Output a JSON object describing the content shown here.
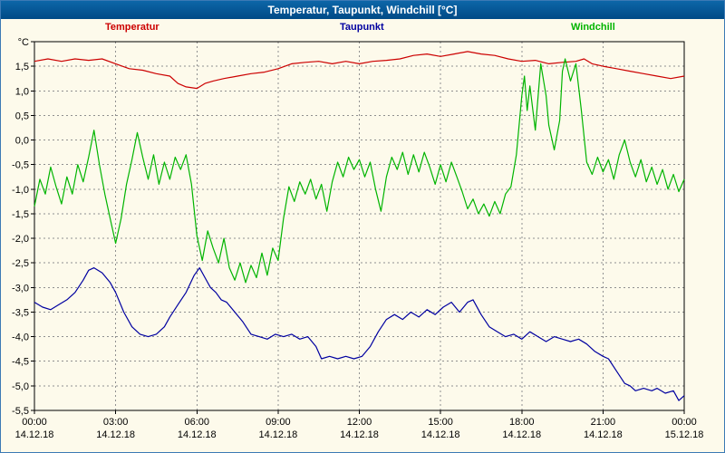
{
  "window": {
    "title": "Temperatur, Taupunkt, Windchill [°C]"
  },
  "chart_data": {
    "type": "line",
    "title": "Temperatur, Taupunkt, Windchill [°C]",
    "xlabel": "",
    "ylabel": "°C",
    "grid": true,
    "legend_position": "top",
    "xlim": [
      0,
      24
    ],
    "y_axis": {
      "min": -5.5,
      "max": 2.0,
      "step": 0.5,
      "ticks": [
        {
          "v": 2.0,
          "label": "°C"
        },
        {
          "v": 1.5,
          "label": "1,5"
        },
        {
          "v": 1.0,
          "label": "1,0"
        },
        {
          "v": 0.5,
          "label": "0,5"
        },
        {
          "v": 0.0,
          "label": "0,0"
        },
        {
          "v": -0.5,
          "label": "-0,5"
        },
        {
          "v": -1.0,
          "label": "-1,0"
        },
        {
          "v": -1.5,
          "label": "-1,5"
        },
        {
          "v": -2.0,
          "label": "-2,0"
        },
        {
          "v": -2.5,
          "label": "-2,5"
        },
        {
          "v": -3.0,
          "label": "-3,0"
        },
        {
          "v": -3.5,
          "label": "-3,5"
        },
        {
          "v": -4.0,
          "label": "-4,0"
        },
        {
          "v": -4.5,
          "label": "-4,5"
        },
        {
          "v": -5.0,
          "label": "-5,0"
        },
        {
          "v": -5.5,
          "label": "-5,5"
        }
      ]
    },
    "x_axis": {
      "ticks": [
        {
          "h": 0,
          "time": "00:00",
          "date": "14.12.18"
        },
        {
          "h": 3,
          "time": "03:00",
          "date": "14.12.18"
        },
        {
          "h": 6,
          "time": "06:00",
          "date": "14.12.18"
        },
        {
          "h": 9,
          "time": "09:00",
          "date": "14.12.18"
        },
        {
          "h": 12,
          "time": "12:00",
          "date": "14.12.18"
        },
        {
          "h": 15,
          "time": "15:00",
          "date": "14.12.18"
        },
        {
          "h": 18,
          "time": "18:00",
          "date": "14.12.18"
        },
        {
          "h": 21,
          "time": "21:00",
          "date": "14.12.18"
        },
        {
          "h": 24,
          "time": "00:00",
          "date": "15.12.18"
        }
      ]
    },
    "series": [
      {
        "name": "Temperatur",
        "color": "#cc0000",
        "points": [
          [
            0,
            1.6
          ],
          [
            0.5,
            1.65
          ],
          [
            1,
            1.6
          ],
          [
            1.5,
            1.65
          ],
          [
            2,
            1.62
          ],
          [
            2.5,
            1.65
          ],
          [
            3,
            1.55
          ],
          [
            3.5,
            1.45
          ],
          [
            4,
            1.42
          ],
          [
            4.5,
            1.35
          ],
          [
            5,
            1.3
          ],
          [
            5.3,
            1.15
          ],
          [
            5.6,
            1.08
          ],
          [
            6,
            1.05
          ],
          [
            6.3,
            1.15
          ],
          [
            6.6,
            1.2
          ],
          [
            7,
            1.25
          ],
          [
            7.5,
            1.3
          ],
          [
            8,
            1.35
          ],
          [
            8.5,
            1.38
          ],
          [
            9,
            1.45
          ],
          [
            9.5,
            1.55
          ],
          [
            10,
            1.58
          ],
          [
            10.5,
            1.6
          ],
          [
            11,
            1.55
          ],
          [
            11.5,
            1.6
          ],
          [
            12,
            1.55
          ],
          [
            12.5,
            1.6
          ],
          [
            13,
            1.62
          ],
          [
            13.5,
            1.65
          ],
          [
            14,
            1.72
          ],
          [
            14.5,
            1.75
          ],
          [
            15,
            1.7
          ],
          [
            15.5,
            1.75
          ],
          [
            16,
            1.8
          ],
          [
            16.5,
            1.75
          ],
          [
            17,
            1.72
          ],
          [
            17.5,
            1.65
          ],
          [
            18,
            1.6
          ],
          [
            18.5,
            1.62
          ],
          [
            19,
            1.55
          ],
          [
            19.5,
            1.58
          ],
          [
            20,
            1.6
          ],
          [
            20.3,
            1.65
          ],
          [
            20.6,
            1.55
          ],
          [
            21,
            1.5
          ],
          [
            21.5,
            1.45
          ],
          [
            22,
            1.4
          ],
          [
            22.5,
            1.35
          ],
          [
            23,
            1.3
          ],
          [
            23.5,
            1.25
          ],
          [
            24,
            1.3
          ]
        ]
      },
      {
        "name": "Taupunkt",
        "color": "#0000a0",
        "points": [
          [
            0,
            -3.3
          ],
          [
            0.3,
            -3.4
          ],
          [
            0.6,
            -3.45
          ],
          [
            0.9,
            -3.35
          ],
          [
            1.2,
            -3.25
          ],
          [
            1.5,
            -3.1
          ],
          [
            1.8,
            -2.85
          ],
          [
            2,
            -2.65
          ],
          [
            2.2,
            -2.6
          ],
          [
            2.5,
            -2.7
          ],
          [
            2.8,
            -2.9
          ],
          [
            3,
            -3.1
          ],
          [
            3.3,
            -3.5
          ],
          [
            3.6,
            -3.8
          ],
          [
            3.9,
            -3.95
          ],
          [
            4.2,
            -4.0
          ],
          [
            4.5,
            -3.95
          ],
          [
            4.8,
            -3.8
          ],
          [
            5,
            -3.6
          ],
          [
            5.3,
            -3.35
          ],
          [
            5.6,
            -3.1
          ],
          [
            5.9,
            -2.75
          ],
          [
            6.1,
            -2.6
          ],
          [
            6.3,
            -2.8
          ],
          [
            6.5,
            -3.0
          ],
          [
            6.7,
            -3.1
          ],
          [
            6.9,
            -3.25
          ],
          [
            7.1,
            -3.3
          ],
          [
            7.4,
            -3.5
          ],
          [
            7.7,
            -3.7
          ],
          [
            8,
            -3.95
          ],
          [
            8.3,
            -4.0
          ],
          [
            8.6,
            -4.05
          ],
          [
            8.9,
            -3.95
          ],
          [
            9.2,
            -4.0
          ],
          [
            9.5,
            -3.95
          ],
          [
            9.8,
            -4.05
          ],
          [
            10.1,
            -4.0
          ],
          [
            10.4,
            -4.2
          ],
          [
            10.6,
            -4.45
          ],
          [
            10.9,
            -4.4
          ],
          [
            11.2,
            -4.45
          ],
          [
            11.5,
            -4.4
          ],
          [
            11.8,
            -4.45
          ],
          [
            12.1,
            -4.4
          ],
          [
            12.4,
            -4.2
          ],
          [
            12.7,
            -3.9
          ],
          [
            13,
            -3.65
          ],
          [
            13.3,
            -3.55
          ],
          [
            13.6,
            -3.65
          ],
          [
            13.9,
            -3.5
          ],
          [
            14.2,
            -3.6
          ],
          [
            14.5,
            -3.45
          ],
          [
            14.8,
            -3.55
          ],
          [
            15.1,
            -3.4
          ],
          [
            15.4,
            -3.3
          ],
          [
            15.7,
            -3.5
          ],
          [
            16,
            -3.3
          ],
          [
            16.2,
            -3.25
          ],
          [
            16.5,
            -3.55
          ],
          [
            16.8,
            -3.8
          ],
          [
            17.1,
            -3.9
          ],
          [
            17.4,
            -4.0
          ],
          [
            17.7,
            -3.95
          ],
          [
            18,
            -4.05
          ],
          [
            18.3,
            -3.9
          ],
          [
            18.6,
            -4.0
          ],
          [
            18.9,
            -4.1
          ],
          [
            19.2,
            -4.0
          ],
          [
            19.5,
            -4.05
          ],
          [
            19.8,
            -4.1
          ],
          [
            20.1,
            -4.05
          ],
          [
            20.4,
            -4.15
          ],
          [
            20.7,
            -4.3
          ],
          [
            21,
            -4.4
          ],
          [
            21.2,
            -4.45
          ],
          [
            21.5,
            -4.7
          ],
          [
            21.8,
            -4.95
          ],
          [
            22,
            -5.0
          ],
          [
            22.2,
            -5.1
          ],
          [
            22.5,
            -5.05
          ],
          [
            22.8,
            -5.1
          ],
          [
            23,
            -5.05
          ],
          [
            23.3,
            -5.15
          ],
          [
            23.6,
            -5.1
          ],
          [
            23.8,
            -5.3
          ],
          [
            24,
            -5.2
          ]
        ]
      },
      {
        "name": "Windchill",
        "color": "#00b400",
        "points": [
          [
            0,
            -1.35
          ],
          [
            0.2,
            -0.8
          ],
          [
            0.4,
            -1.1
          ],
          [
            0.6,
            -0.55
          ],
          [
            0.8,
            -0.95
          ],
          [
            1,
            -1.3
          ],
          [
            1.2,
            -0.75
          ],
          [
            1.4,
            -1.1
          ],
          [
            1.6,
            -0.5
          ],
          [
            1.8,
            -0.85
          ],
          [
            2,
            -0.35
          ],
          [
            2.2,
            0.2
          ],
          [
            2.4,
            -0.5
          ],
          [
            2.6,
            -1.1
          ],
          [
            2.8,
            -1.6
          ],
          [
            3,
            -2.1
          ],
          [
            3.2,
            -1.6
          ],
          [
            3.4,
            -0.9
          ],
          [
            3.6,
            -0.4
          ],
          [
            3.8,
            0.15
          ],
          [
            4,
            -0.35
          ],
          [
            4.2,
            -0.8
          ],
          [
            4.4,
            -0.3
          ],
          [
            4.6,
            -0.9
          ],
          [
            4.8,
            -0.45
          ],
          [
            5,
            -0.8
          ],
          [
            5.2,
            -0.35
          ],
          [
            5.4,
            -0.6
          ],
          [
            5.6,
            -0.3
          ],
          [
            5.8,
            -0.9
          ],
          [
            6,
            -1.95
          ],
          [
            6.2,
            -2.45
          ],
          [
            6.4,
            -1.85
          ],
          [
            6.6,
            -2.2
          ],
          [
            6.8,
            -2.5
          ],
          [
            7,
            -2.0
          ],
          [
            7.2,
            -2.6
          ],
          [
            7.4,
            -2.85
          ],
          [
            7.6,
            -2.5
          ],
          [
            7.8,
            -2.9
          ],
          [
            8,
            -2.55
          ],
          [
            8.2,
            -2.8
          ],
          [
            8.4,
            -2.3
          ],
          [
            8.6,
            -2.75
          ],
          [
            8.8,
            -2.2
          ],
          [
            9,
            -2.45
          ],
          [
            9.2,
            -1.6
          ],
          [
            9.4,
            -0.95
          ],
          [
            9.6,
            -1.25
          ],
          [
            9.8,
            -0.85
          ],
          [
            10,
            -1.1
          ],
          [
            10.2,
            -0.8
          ],
          [
            10.4,
            -1.2
          ],
          [
            10.6,
            -0.9
          ],
          [
            10.8,
            -1.45
          ],
          [
            11,
            -0.85
          ],
          [
            11.2,
            -0.45
          ],
          [
            11.4,
            -0.75
          ],
          [
            11.6,
            -0.35
          ],
          [
            11.8,
            -0.6
          ],
          [
            12,
            -0.4
          ],
          [
            12.2,
            -0.75
          ],
          [
            12.4,
            -0.45
          ],
          [
            12.6,
            -1.0
          ],
          [
            12.8,
            -1.45
          ],
          [
            13,
            -0.75
          ],
          [
            13.2,
            -0.35
          ],
          [
            13.4,
            -0.6
          ],
          [
            13.6,
            -0.25
          ],
          [
            13.8,
            -0.7
          ],
          [
            14,
            -0.3
          ],
          [
            14.2,
            -0.65
          ],
          [
            14.4,
            -0.25
          ],
          [
            14.6,
            -0.55
          ],
          [
            14.8,
            -0.9
          ],
          [
            15,
            -0.5
          ],
          [
            15.2,
            -0.85
          ],
          [
            15.4,
            -0.45
          ],
          [
            15.6,
            -0.75
          ],
          [
            15.8,
            -1.05
          ],
          [
            16,
            -1.4
          ],
          [
            16.2,
            -1.2
          ],
          [
            16.4,
            -1.5
          ],
          [
            16.6,
            -1.3
          ],
          [
            16.8,
            -1.55
          ],
          [
            17,
            -1.25
          ],
          [
            17.2,
            -1.5
          ],
          [
            17.4,
            -1.1
          ],
          [
            17.6,
            -0.95
          ],
          [
            17.8,
            -0.3
          ],
          [
            18,
            0.9
          ],
          [
            18.1,
            1.3
          ],
          [
            18.2,
            0.6
          ],
          [
            18.3,
            1.1
          ],
          [
            18.5,
            0.2
          ],
          [
            18.7,
            1.55
          ],
          [
            18.9,
            0.9
          ],
          [
            19,
            0.3
          ],
          [
            19.2,
            -0.2
          ],
          [
            19.4,
            0.4
          ],
          [
            19.5,
            1.4
          ],
          [
            19.6,
            1.65
          ],
          [
            19.8,
            1.2
          ],
          [
            20,
            1.55
          ],
          [
            20.2,
            0.6
          ],
          [
            20.4,
            -0.45
          ],
          [
            20.6,
            -0.7
          ],
          [
            20.8,
            -0.35
          ],
          [
            21,
            -0.65
          ],
          [
            21.2,
            -0.4
          ],
          [
            21.4,
            -0.8
          ],
          [
            21.6,
            -0.3
          ],
          [
            21.8,
            0.0
          ],
          [
            22,
            -0.45
          ],
          [
            22.2,
            -0.75
          ],
          [
            22.4,
            -0.4
          ],
          [
            22.6,
            -0.85
          ],
          [
            22.8,
            -0.55
          ],
          [
            23,
            -0.9
          ],
          [
            23.2,
            -0.6
          ],
          [
            23.4,
            -1.0
          ],
          [
            23.6,
            -0.7
          ],
          [
            23.8,
            -1.05
          ],
          [
            24,
            -0.8
          ]
        ]
      }
    ]
  }
}
